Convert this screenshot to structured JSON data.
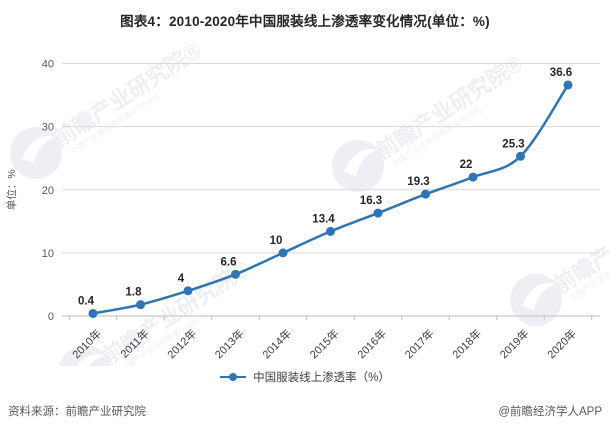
{
  "title": "图表4：2010-2020年中国服装线上渗透率变化情况(单位：%)",
  "chart_data": {
    "type": "line",
    "categories": [
      "2010年",
      "2011年",
      "2012年",
      "2013年",
      "2014年",
      "2015年",
      "2016年",
      "2017年",
      "2018年",
      "2019年",
      "2020年"
    ],
    "series": [
      {
        "name": "中国服装线上渗透率（%）",
        "values": [
          0.4,
          1.8,
          4,
          6.6,
          10,
          13.4,
          16.3,
          19.3,
          22,
          25.3,
          36.6
        ]
      }
    ],
    "data_labels": [
      "0.4",
      "1.8",
      "4",
      "6.6",
      "10",
      "13.4",
      "16.3",
      "19.3",
      "22",
      "25.3",
      "36.6"
    ],
    "title": "图表4：2010-2020年中国服装线上渗透率变化情况(单位：%)",
    "xlabel": "",
    "ylabel": "单位：%",
    "ylim": [
      0,
      40
    ],
    "yticks": [
      0,
      10,
      20,
      30,
      40
    ],
    "grid": "horizontal",
    "legend_position": "bottom",
    "colors": {
      "line": "#2e75b6",
      "marker": "#2e75b6",
      "grid": "#d9d9d9",
      "axis": "#bfbfbf",
      "tick_text": "#595959",
      "xlabel_text": "#404040",
      "data_label_text": "#262626",
      "watermark": "#9aa3b8"
    }
  },
  "legend": {
    "label": "中国服装线上渗透率（%）"
  },
  "footer": {
    "source": "资料来源：前瞻产业研究院",
    "credit": "@前瞻经济学人APP"
  },
  "watermark": {
    "text": "前瞻产业研究院",
    "reg_mark": "®",
    "subtext": "中国产业咨询领导者(839599)"
  }
}
